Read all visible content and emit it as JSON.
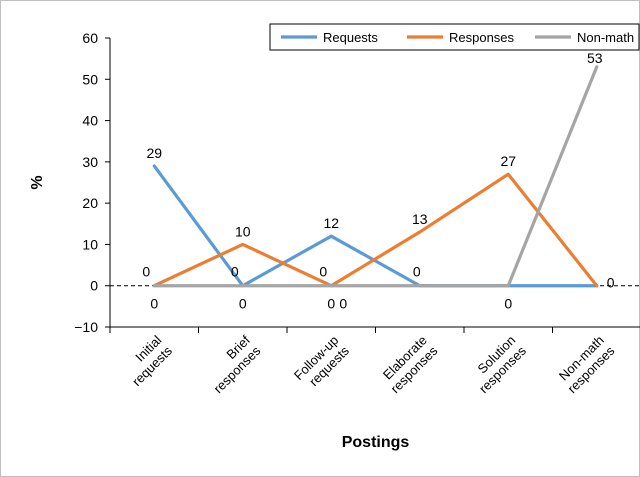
{
  "chart_data": {
    "type": "line",
    "title": "",
    "xlabel": "Postings",
    "ylabel": "%",
    "ylim": [
      -10,
      60
    ],
    "yticks": [
      "60",
      "50",
      "40",
      "30",
      "20",
      "10",
      "0",
      "−10"
    ],
    "ytick_values": [
      60,
      50,
      40,
      30,
      20,
      10,
      0,
      -10
    ],
    "grid": false,
    "legend_position": "top-right",
    "categories": [
      "Initial requests",
      "Brief responses",
      "Follow-up requests",
      "Elaborate responses",
      "Solution responses",
      "Non-math responses"
    ],
    "category_lines": [
      [
        "Initial",
        "requests"
      ],
      [
        "Brief",
        "responses"
      ],
      [
        "Follow-up",
        "requests"
      ],
      [
        "Elaborate",
        "responses"
      ],
      [
        "Solution",
        "responses"
      ],
      [
        "Non-math",
        "responses"
      ]
    ],
    "series": [
      {
        "name": "Requests",
        "color": "#5b9bd5",
        "values": [
          29,
          0,
          12,
          0,
          0,
          0
        ]
      },
      {
        "name": "Responses",
        "color": "#ed7d31",
        "values": [
          0,
          10,
          0,
          13,
          27,
          0
        ]
      },
      {
        "name": "Non-math",
        "color": "#a5a5a5",
        "values": [
          0,
          0,
          0,
          0,
          0,
          53
        ]
      }
    ],
    "data_labels": [
      {
        "text": "29",
        "category": 0,
        "value": 29
      },
      {
        "text": "0",
        "category": 0,
        "value": 0,
        "pos": "above"
      },
      {
        "text": "0",
        "category": 0,
        "value": 0,
        "pos": "below"
      },
      {
        "text": "10",
        "category": 1,
        "value": 10
      },
      {
        "text": "0",
        "category": 1,
        "value": 0,
        "pos": "above"
      },
      {
        "text": "0",
        "category": 1,
        "value": 0,
        "pos": "below"
      },
      {
        "text": "12",
        "category": 2,
        "value": 12
      },
      {
        "text": "0",
        "category": 2,
        "value": 0,
        "pos": "above"
      },
      {
        "text": "0",
        "category": 2,
        "value": 0,
        "pos": "below"
      },
      {
        "text": "0",
        "category": 2,
        "value": 0,
        "pos": "below-right"
      },
      {
        "text": "13",
        "category": 3,
        "value": 13
      },
      {
        "text": "0",
        "category": 3,
        "value": 0,
        "pos": "above"
      },
      {
        "text": "27",
        "category": 4,
        "value": 27
      },
      {
        "text": "0",
        "category": 4,
        "value": 0,
        "pos": "below"
      },
      {
        "text": "53",
        "category": 5,
        "value": 53
      },
      {
        "text": "0",
        "category": 5,
        "value": 0,
        "pos": "right"
      }
    ]
  }
}
